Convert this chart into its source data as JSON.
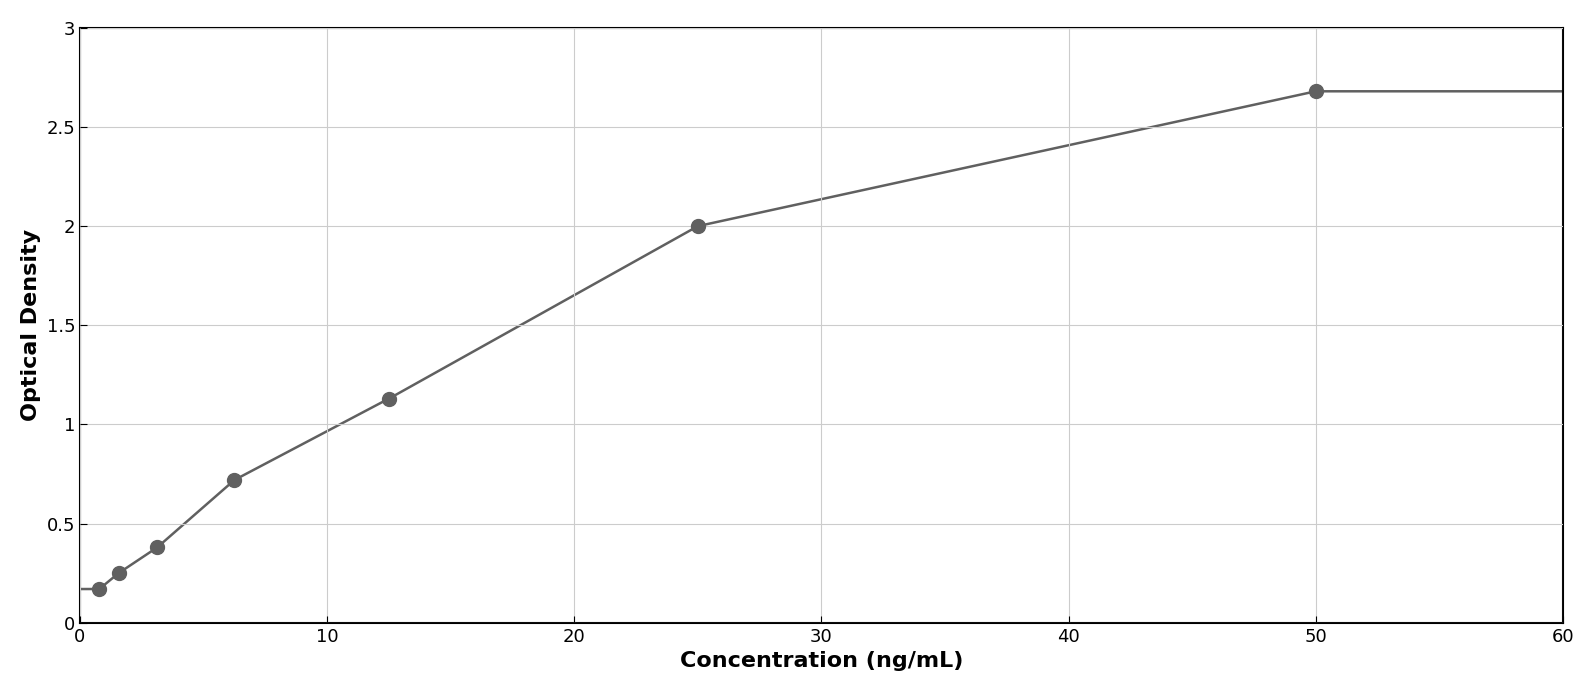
{
  "x_data": [
    0.78,
    1.56,
    3.125,
    6.25,
    12.5,
    25.0,
    50.0
  ],
  "y_data": [
    0.17,
    0.25,
    0.38,
    0.72,
    1.13,
    2.0,
    2.68
  ],
  "xlabel": "Concentration (ng/mL)",
  "ylabel": "Optical Density",
  "xlim": [
    0,
    60
  ],
  "ylim": [
    0,
    3
  ],
  "xticks": [
    0,
    10,
    20,
    30,
    40,
    50,
    60
  ],
  "yticks": [
    0,
    0.5,
    1.0,
    1.5,
    2.0,
    2.5,
    3.0
  ],
  "point_color": "#606060",
  "line_color": "#606060",
  "background_color": "#ffffff",
  "grid_color": "#cccccc",
  "marker_size": 10,
  "line_width": 1.8,
  "xlabel_fontsize": 16,
  "ylabel_fontsize": 16,
  "tick_fontsize": 13,
  "xlabel_fontweight": "bold",
  "ylabel_fontweight": "bold"
}
